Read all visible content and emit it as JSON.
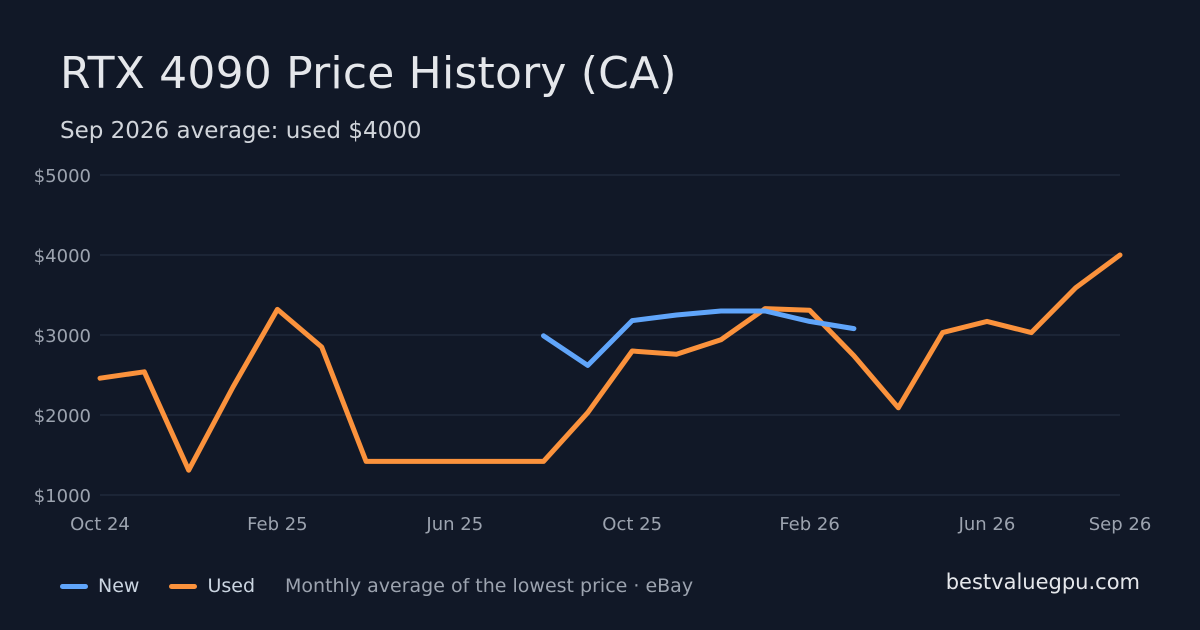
{
  "header": {
    "title": "RTX 4090 Price History (CA)",
    "subtitle": "Sep 2026 average: used $4000"
  },
  "footer": {
    "legend": [
      {
        "name": "New",
        "color": "#60a5fa"
      },
      {
        "name": "Used",
        "color": "#fb923c"
      }
    ],
    "note": "Monthly average of the lowest price · eBay",
    "site": "bestvaluegpu.com"
  },
  "chart_data": {
    "type": "line",
    "x": [
      "Oct 24",
      "Nov 24",
      "Dec 24",
      "Jan 25",
      "Feb 25",
      "Mar 25",
      "Apr 25",
      "May 25",
      "Jun 25",
      "Jul 25",
      "Aug 25",
      "Sep 25",
      "Oct 25",
      "Nov 25",
      "Dec 25",
      "Jan 26",
      "Feb 26",
      "Mar 26",
      "Apr 26",
      "May 26",
      "Jun 26",
      "Jul 26",
      "Aug 26",
      "Sep 26"
    ],
    "x_tick_labels": [
      "Oct 24",
      "Feb 25",
      "Jun 25",
      "Oct 25",
      "Feb 26",
      "Jun 26",
      "Sep 26"
    ],
    "y_ticks": [
      1000,
      2000,
      3000,
      4000,
      5000
    ],
    "y_tick_labels": [
      "$1000",
      "$2000",
      "$3000",
      "$4000",
      "$5000"
    ],
    "ylim": [
      1000,
      5000
    ],
    "grid": true,
    "legend_position": "bottom-left",
    "series": [
      {
        "name": "New",
        "color": "#60a5fa",
        "values": [
          null,
          null,
          null,
          null,
          null,
          null,
          null,
          null,
          null,
          null,
          2990,
          2620,
          3180,
          3250,
          3300,
          3300,
          3170,
          3080,
          null,
          null,
          null,
          null,
          null,
          null
        ]
      },
      {
        "name": "Used",
        "color": "#fb923c",
        "values": [
          2460,
          2540,
          1310,
          2350,
          3320,
          2850,
          1420,
          1420,
          1420,
          1420,
          1420,
          2030,
          2800,
          2760,
          2940,
          3330,
          3310,
          2740,
          2090,
          3030,
          3170,
          3030,
          3590,
          4000
        ]
      }
    ]
  }
}
